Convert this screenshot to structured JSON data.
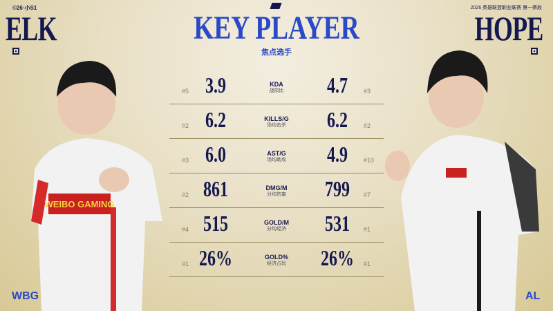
{
  "header": {
    "event_code": "©26·小S1",
    "event_title": "2026 英雄联盟职业联赛 第一赛段",
    "title": "KEY PLAYER",
    "subtitle": "焦点选手"
  },
  "left_player": {
    "name": "ELK",
    "team": "WBG",
    "jersey_text": "WEIBO GAMING"
  },
  "right_player": {
    "name": "HOPE",
    "team": "AL"
  },
  "stats": [
    {
      "label": "KDA",
      "label_cn": "战损比",
      "left": "3.9",
      "left_rank": "#5",
      "right": "4.7",
      "right_rank": "#3"
    },
    {
      "label": "KILLS/G",
      "label_cn": "场均击杀",
      "left": "6.2",
      "left_rank": "#2",
      "right": "6.2",
      "right_rank": "#2"
    },
    {
      "label": "AST/G",
      "label_cn": "场均助攻",
      "left": "6.0",
      "left_rank": "#3",
      "right": "4.9",
      "right_rank": "#10"
    },
    {
      "label": "DMG/M",
      "label_cn": "分均伤害",
      "left": "861",
      "left_rank": "#2",
      "right": "799",
      "right_rank": "#7"
    },
    {
      "label": "GOLD/M",
      "label_cn": "分均经济",
      "left": "515",
      "left_rank": "#4",
      "right": "531",
      "right_rank": "#1"
    },
    {
      "label": "GOLD%",
      "label_cn": "经济占比",
      "left": "26%",
      "left_rank": "#1",
      "right": "26%",
      "right_rank": "#1"
    }
  ],
  "colors": {
    "navy": "#141850",
    "accent_blue": "#2a49c8",
    "background": "#e8dfc4"
  }
}
